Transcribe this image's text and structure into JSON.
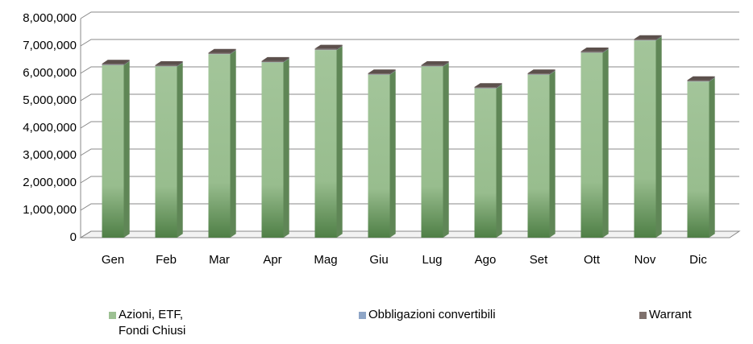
{
  "chart_data": {
    "type": "bar3d_stacked",
    "categories": [
      "Gen",
      "Feb",
      "Mar",
      "Apr",
      "Mag",
      "Giu",
      "Lug",
      "Ago",
      "Set",
      "Ott",
      "Nov",
      "Dic"
    ],
    "series": [
      {
        "name": "Azioni, ETF, Fondi Chiusi",
        "color": "#9dc193",
        "values": [
          6300000,
          6250000,
          6700000,
          6400000,
          6850000,
          5950000,
          6250000,
          5450000,
          5950000,
          6750000,
          7200000,
          5700000
        ]
      },
      {
        "name": "Obbligazioni convertibili",
        "color": "#8ea5c6",
        "values": [
          10000,
          10000,
          10000,
          10000,
          10000,
          10000,
          10000,
          10000,
          10000,
          10000,
          10000,
          10000
        ]
      },
      {
        "name": "Warrant",
        "color": "#7f716d",
        "values": [
          40000,
          40000,
          40000,
          40000,
          40000,
          40000,
          40000,
          40000,
          40000,
          40000,
          40000,
          40000
        ]
      }
    ],
    "ylim": [
      0,
      8000000
    ],
    "yticks": [
      0,
      {
        "value": 1000000,
        "label": "1,000,000"
      },
      {
        "value": 2000000,
        "label": "2,000,000"
      },
      {
        "value": 3000000,
        "label": "3,000,000"
      },
      {
        "value": 4000000,
        "label": "4,000,000"
      },
      {
        "value": 5000000,
        "label": "5,000,000"
      },
      {
        "value": 6000000,
        "label": "6,000,000"
      },
      {
        "value": 7000000,
        "label": "7,000,000"
      },
      {
        "value": 8000000,
        "label": "8,000,000"
      }
    ],
    "grid": true,
    "legend": "bottom"
  }
}
